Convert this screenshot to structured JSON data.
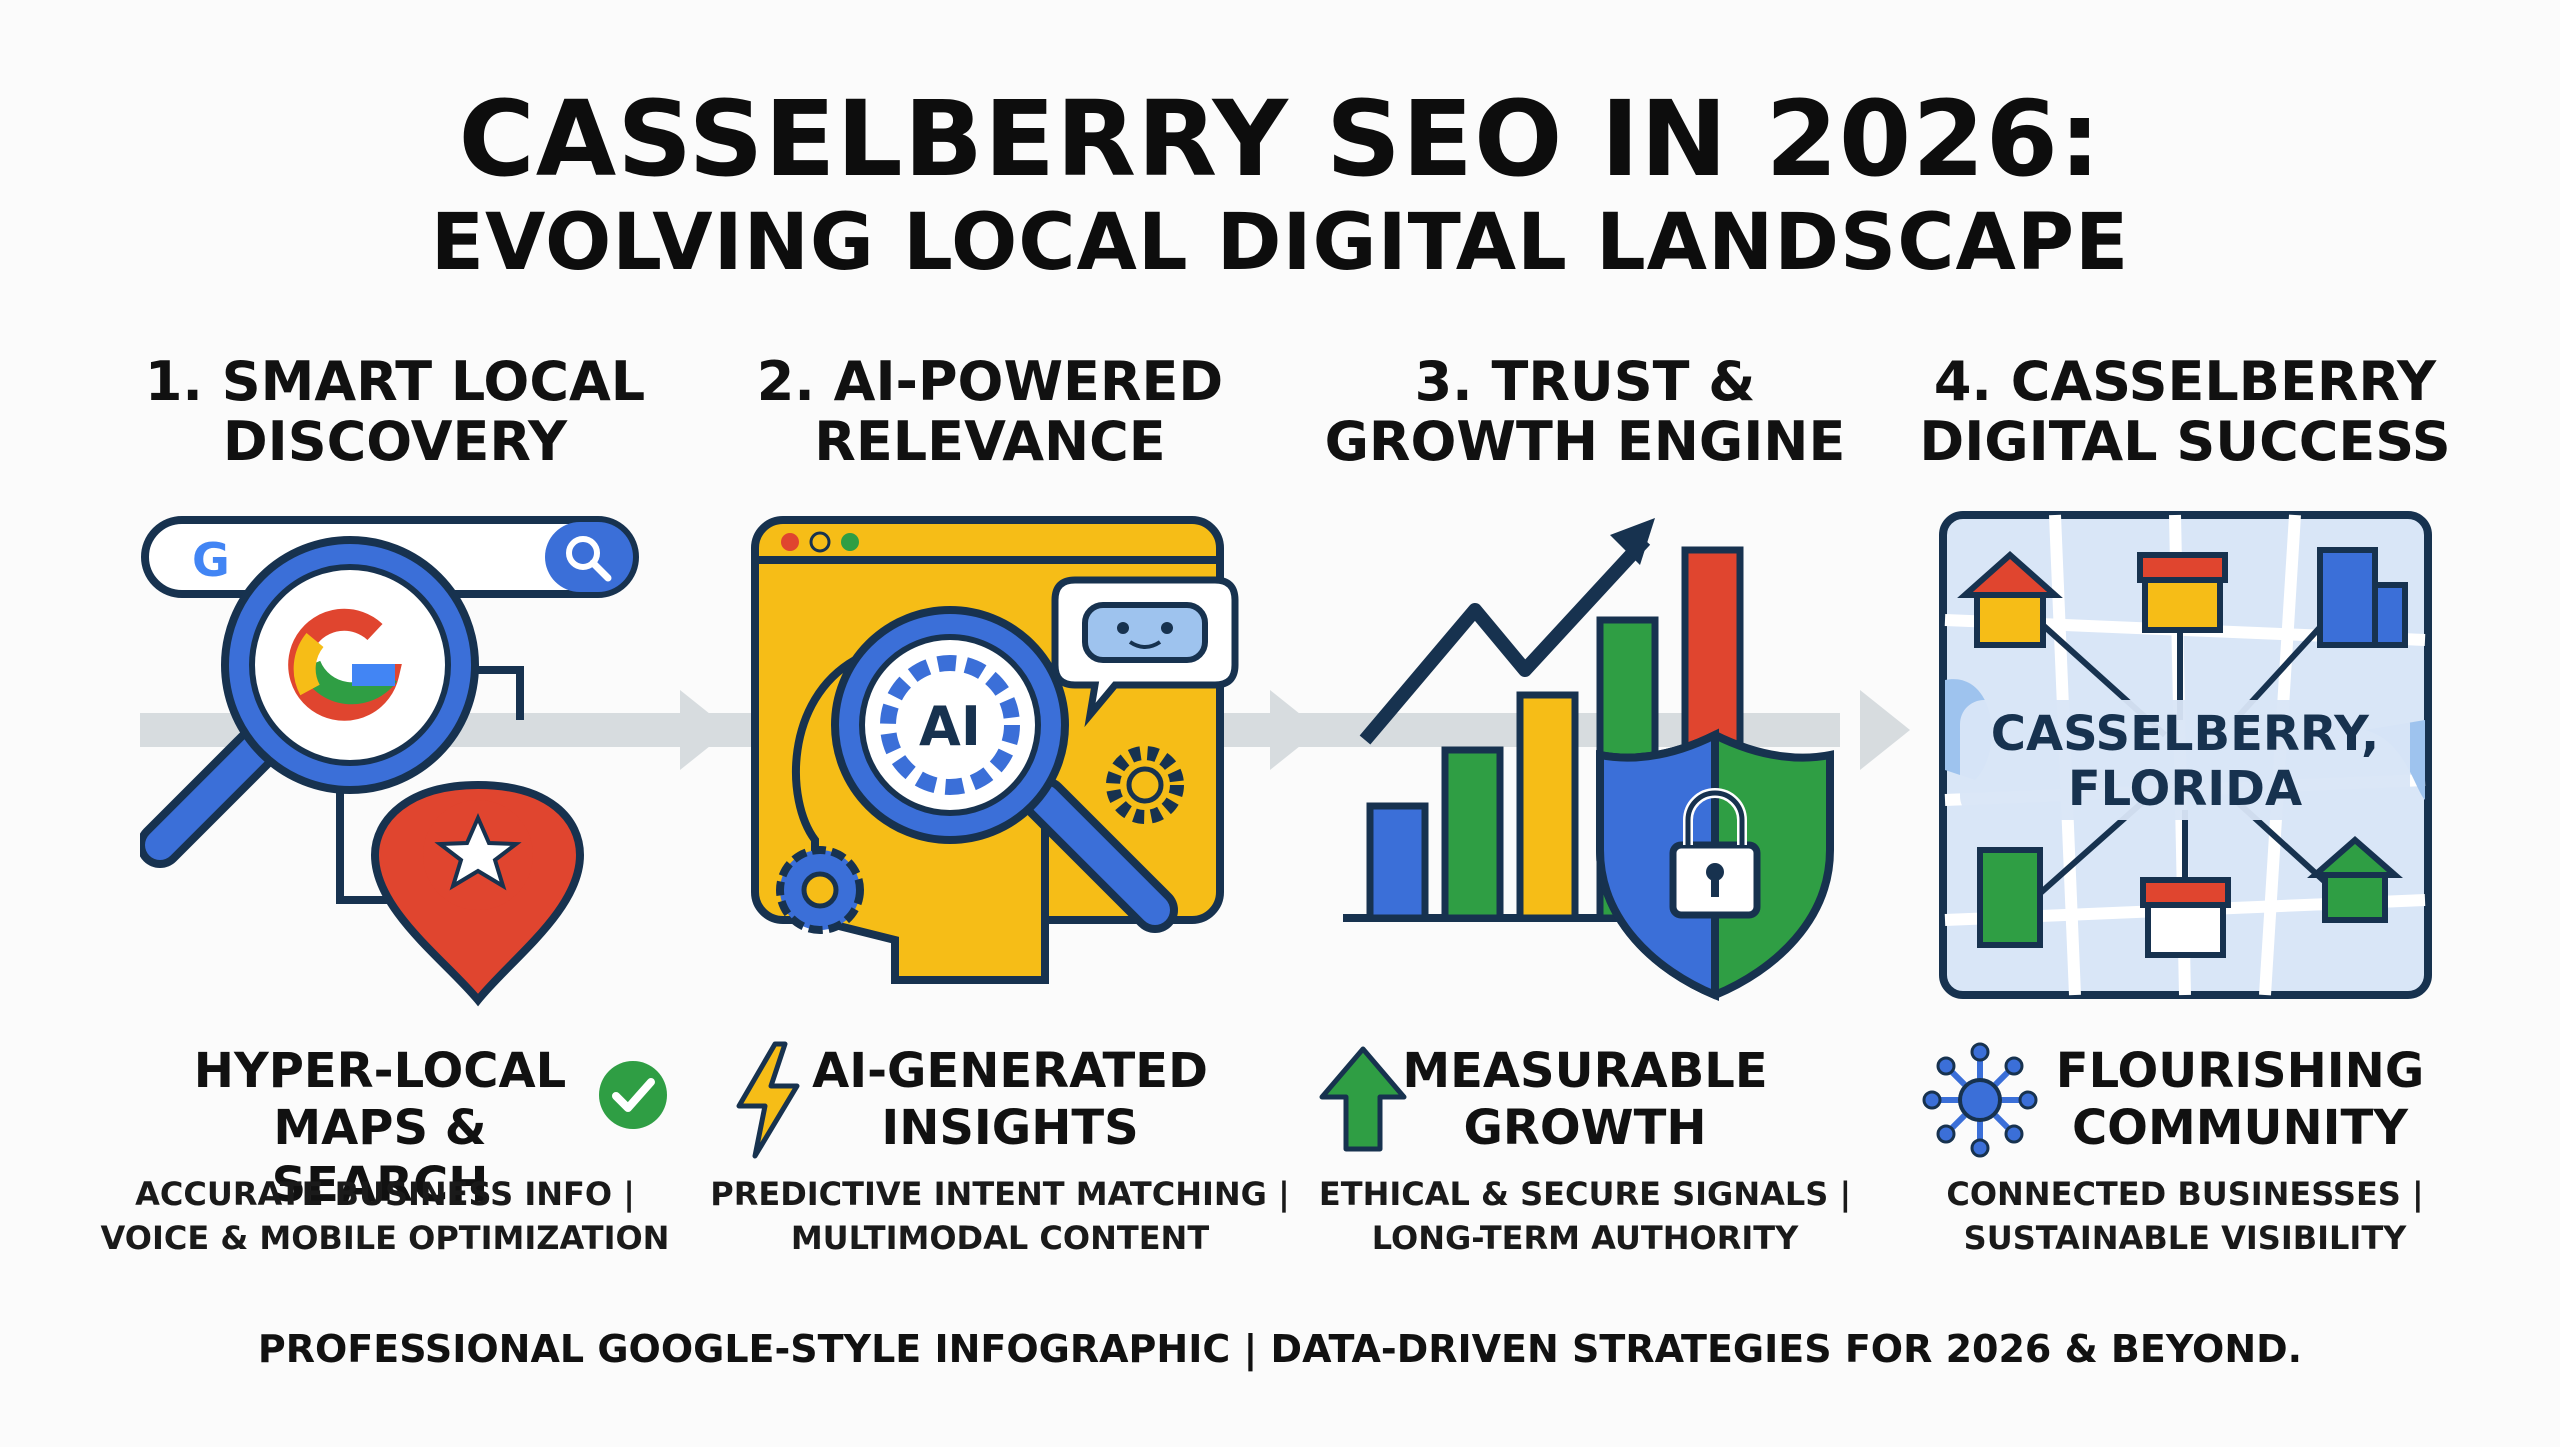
{
  "title": "CASSELBERRY SEO IN 2026:",
  "subtitle": "EVOLVING LOCAL DIGITAL LANDSCAPE",
  "steps": [
    {
      "heading_line1": "1. SMART LOCAL",
      "heading_line2": "DISCOVERY",
      "sub_line1": "HYPER-LOCAL",
      "sub_line2": "MAPS & SEARCH",
      "sub_icon": "check-circle-icon",
      "desc_line1": "ACCURATE BUSINESS INFO |",
      "desc_line2": "VOICE & MOBILE OPTIMIZATION"
    },
    {
      "heading_line1": "2. AI-POWERED",
      "heading_line2": "RELEVANCE",
      "art_label": "AI",
      "sub_line1": "AI-GENERATED",
      "sub_line2": "INSIGHTS",
      "sub_icon": "lightning-bolt-icon",
      "desc_line1": "PREDICTIVE INTENT MATCHING |",
      "desc_line2": "MULTIMODAL CONTENT"
    },
    {
      "heading_line1": "3. TRUST &",
      "heading_line2": "GROWTH ENGINE",
      "sub_line1": "MEASURABLE",
      "sub_line2": "GROWTH",
      "sub_icon": "up-arrow-icon",
      "desc_line1": "ETHICAL & SECURE SIGNALS |",
      "desc_line2": "LONG-TERM AUTHORITY"
    },
    {
      "heading_line1": "4. CASSELBERRY",
      "heading_line2": "DIGITAL SUCCESS",
      "map_label_line1": "CASSELBERRY,",
      "map_label_line2": "FLORIDA",
      "sub_line1": "FLOURISHING",
      "sub_line2": "COMMUNITY",
      "sub_icon": "network-hub-icon",
      "desc_line1": "CONNECTED BUSINESSES |",
      "desc_line2": "SUSTAINABLE VISIBILITY"
    }
  ],
  "footer": "PROFESSIONAL GOOGLE-STYLE INFOGRAPHIC | DATA-DRIVEN STRATEGIES FOR 2026 & BEYOND.",
  "colors": {
    "blue": "#3b6fd8",
    "red": "#e0452f",
    "yellow": "#f6bd17",
    "green": "#2f9e44",
    "navy": "#17324f",
    "light_blue": "#d9e6f7"
  }
}
